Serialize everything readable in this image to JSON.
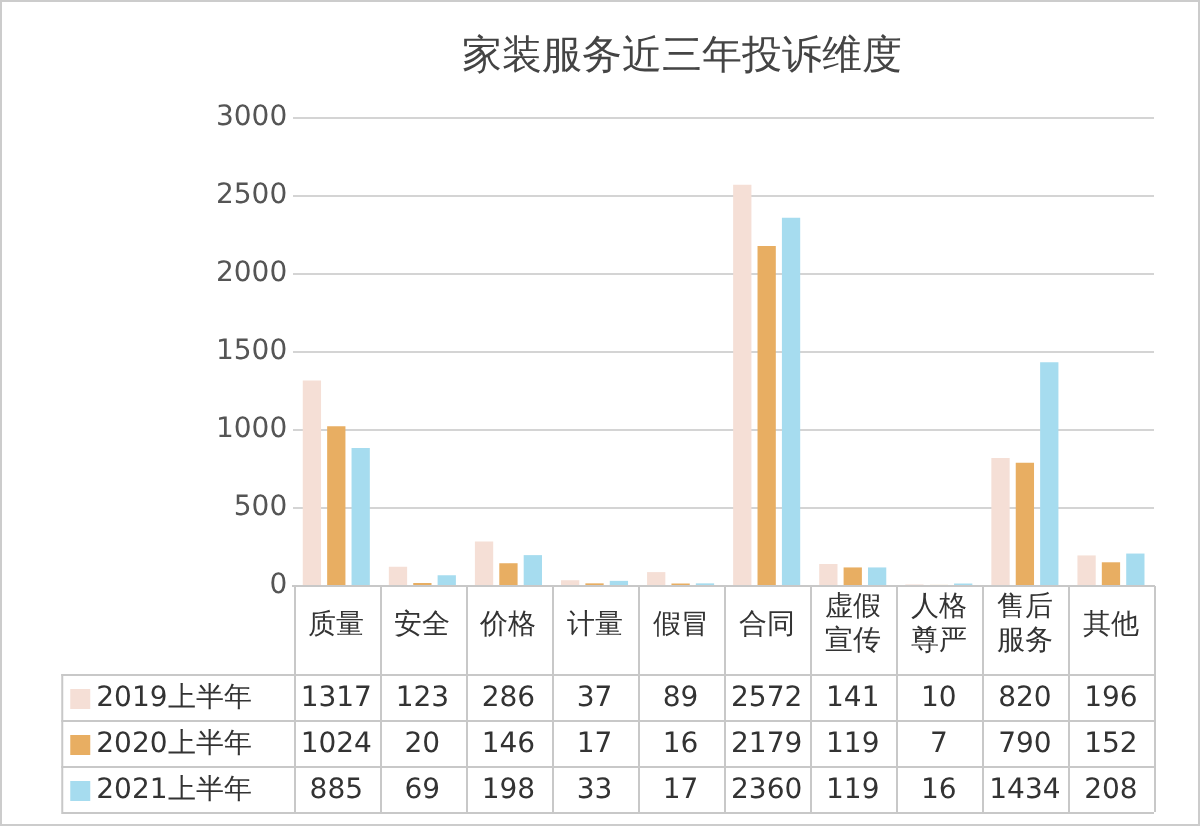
{
  "chart_data": {
    "type": "bar",
    "title": "家装服务近三年投诉维度",
    "categories": [
      "质量",
      "安全",
      "价格",
      "计量",
      "假冒",
      "合同",
      "虚假宣传",
      "人格尊严",
      "售后服务",
      "其他"
    ],
    "series": [
      {
        "name": "2019上半年",
        "color": "#f5dfd6",
        "values": [
          1317,
          123,
          286,
          37,
          89,
          2572,
          141,
          10,
          820,
          196
        ]
      },
      {
        "name": "2020上半年",
        "color": "#e8ae62",
        "values": [
          1024,
          20,
          146,
          17,
          16,
          2179,
          119,
          7,
          790,
          152
        ]
      },
      {
        "name": "2021上半年",
        "color": "#a6dcef",
        "values": [
          885,
          69,
          198,
          33,
          17,
          2360,
          119,
          16,
          1434,
          208
        ]
      }
    ],
    "ylim": [
      0,
      3000
    ],
    "yticks": [
      0,
      500,
      1000,
      1500,
      2000,
      2500,
      3000
    ],
    "grid": "y",
    "legend": "bottom",
    "data_labels": true
  }
}
